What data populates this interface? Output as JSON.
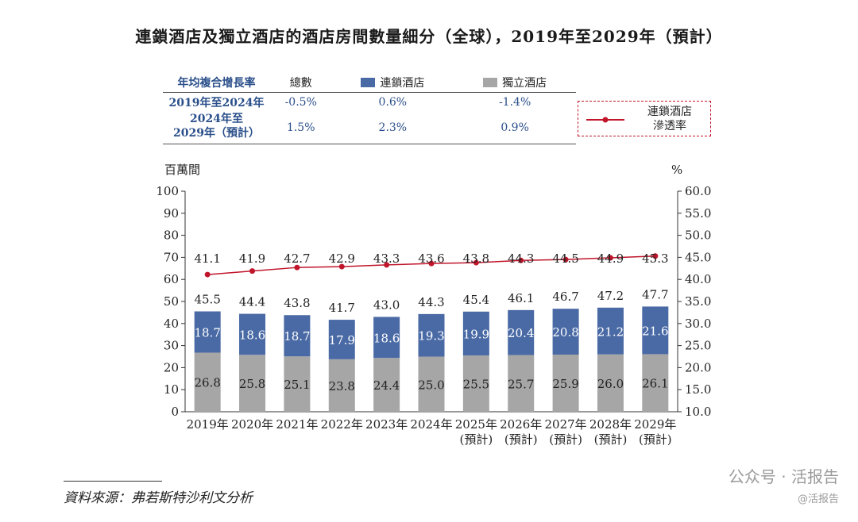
{
  "title": "連鎖酒店及獨立酒店的酒店房間數量細分（全球），2019年至2029年（預計）",
  "cagr_table": {
    "header": [
      "年均複合增長率",
      "總數",
      "連鎖酒店",
      "獨立酒店"
    ],
    "rows": [
      {
        "label": "2019年至2024年",
        "total": "-0.5%",
        "chain": "0.6%",
        "independent": "-1.4%"
      },
      {
        "label_line1": "2024年至",
        "label_line2": "2029年（預計）",
        "total": "1.5%",
        "chain": "2.3%",
        "independent": "0.9%"
      }
    ]
  },
  "legend_line": {
    "line1": "連鎖酒店",
    "line2": "滲透率"
  },
  "colors": {
    "chain": "#4a6aa5",
    "independent": "#a6a6a6",
    "penetration": "#c0152a",
    "table_header": "#2a4f8a"
  },
  "chart_data": {
    "type": "bar",
    "stacked": true,
    "categories": [
      "2019年",
      "2020年",
      "2021年",
      "2022年",
      "2023年",
      "2024年",
      "2025年",
      "2026年",
      "2027年",
      "2028年",
      "2029年"
    ],
    "category_sub": [
      "",
      "",
      "",
      "",
      "",
      "",
      "(預計)",
      "(預計)",
      "(預計)",
      "(預計)",
      "(預計)"
    ],
    "series": [
      {
        "name": "獨立酒店",
        "values": [
          26.8,
          25.8,
          25.1,
          23.8,
          24.4,
          25.0,
          25.5,
          25.7,
          25.9,
          26.0,
          26.1
        ]
      },
      {
        "name": "連鎖酒店",
        "values": [
          18.7,
          18.6,
          18.7,
          17.9,
          18.6,
          19.3,
          19.9,
          20.4,
          20.8,
          21.2,
          21.6
        ]
      }
    ],
    "totals": [
      45.5,
      44.4,
      43.8,
      41.7,
      43.0,
      44.3,
      45.4,
      46.1,
      46.7,
      47.2,
      47.7
    ],
    "line_series": {
      "name": "連鎖酒店滲透率",
      "axis": "right",
      "values": [
        41.1,
        41.9,
        42.7,
        42.9,
        43.3,
        43.6,
        43.8,
        44.3,
        44.5,
        44.9,
        45.3
      ]
    },
    "ylabel_left": "百萬間",
    "ylabel_right": "%",
    "ylim_left": [
      0,
      100
    ],
    "yticks_left": [
      "0",
      "10",
      "20",
      "30",
      "40",
      "50",
      "60",
      "70",
      "80",
      "90",
      "100"
    ],
    "ylim_right": [
      10,
      60
    ],
    "yticks_right": [
      "10.0",
      "15.0",
      "20.0",
      "25.0",
      "30.0",
      "35.0",
      "40.0",
      "45.0",
      "50.0",
      "55.0",
      "60.0"
    ],
    "grid": false
  },
  "source_text": "資料來源：弗若斯特沙利文分析",
  "watermark": {
    "line1": "公众号 · 活报告",
    "line2": "@活报告"
  }
}
